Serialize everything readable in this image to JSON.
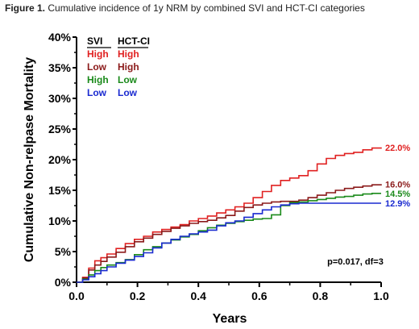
{
  "caption": {
    "label": "Figure 1.",
    "text": " Cumulative incidence of 1y NRM by combined SVI and HCT-CI categories"
  },
  "chart_data": {
    "type": "line",
    "step": true,
    "xlabel": "Years",
    "ylabel": "Cumulative Non-relpase Mortality",
    "xlim": [
      0,
      1.0
    ],
    "ylim": [
      0,
      40
    ],
    "xticks": [
      "0.0",
      "0.2",
      "0.4",
      "0.6",
      "0.8",
      "1.0"
    ],
    "yticks": [
      "0%",
      "5%",
      "10%",
      "15%",
      "20%",
      "25%",
      "30%",
      "35%",
      "40%"
    ],
    "grid": false,
    "legend": {
      "position": "top-left",
      "headers": [
        "SVI",
        "HCT-CI"
      ],
      "rows": [
        {
          "svi": "High",
          "hctci": "High"
        },
        {
          "svi": "Low",
          "hctci": "High"
        },
        {
          "svi": "High",
          "hctci": "Low"
        },
        {
          "svi": "Low",
          "hctci": "Low"
        }
      ]
    },
    "annotation": "p=0.017, df=3",
    "series": [
      {
        "color": "#e02020",
        "end_label": "22.0%",
        "points": [
          [
            0,
            0
          ],
          [
            0.02,
            0.8
          ],
          [
            0.04,
            2.3
          ],
          [
            0.06,
            3.5
          ],
          [
            0.08,
            4.0
          ],
          [
            0.1,
            4.6
          ],
          [
            0.13,
            5.5
          ],
          [
            0.16,
            6.3
          ],
          [
            0.19,
            7.0
          ],
          [
            0.22,
            7.5
          ],
          [
            0.25,
            8.2
          ],
          [
            0.28,
            8.6
          ],
          [
            0.31,
            9.0
          ],
          [
            0.34,
            9.4
          ],
          [
            0.37,
            10.0
          ],
          [
            0.4,
            10.4
          ],
          [
            0.43,
            10.8
          ],
          [
            0.46,
            11.3
          ],
          [
            0.49,
            11.8
          ],
          [
            0.52,
            12.3
          ],
          [
            0.55,
            12.9
          ],
          [
            0.58,
            13.8
          ],
          [
            0.61,
            14.8
          ],
          [
            0.64,
            15.8
          ],
          [
            0.67,
            16.6
          ],
          [
            0.7,
            17.0
          ],
          [
            0.73,
            17.4
          ],
          [
            0.76,
            18.2
          ],
          [
            0.79,
            19.3
          ],
          [
            0.82,
            20.2
          ],
          [
            0.85,
            20.7
          ],
          [
            0.88,
            21.0
          ],
          [
            0.91,
            21.2
          ],
          [
            0.94,
            21.6
          ],
          [
            0.97,
            21.9
          ],
          [
            1.0,
            22.0
          ]
        ]
      },
      {
        "color": "#8b1a1a",
        "end_label": "16.0%",
        "points": [
          [
            0,
            0
          ],
          [
            0.02,
            0.7
          ],
          [
            0.04,
            2.0
          ],
          [
            0.06,
            2.8
          ],
          [
            0.08,
            3.4
          ],
          [
            0.1,
            4.1
          ],
          [
            0.13,
            4.9
          ],
          [
            0.16,
            5.8
          ],
          [
            0.19,
            6.6
          ],
          [
            0.22,
            7.2
          ],
          [
            0.25,
            7.8
          ],
          [
            0.28,
            8.3
          ],
          [
            0.31,
            8.8
          ],
          [
            0.34,
            9.2
          ],
          [
            0.37,
            9.6
          ],
          [
            0.4,
            9.9
          ],
          [
            0.43,
            10.1
          ],
          [
            0.46,
            10.5
          ],
          [
            0.49,
            10.9
          ],
          [
            0.52,
            11.6
          ],
          [
            0.55,
            12.2
          ],
          [
            0.58,
            12.6
          ],
          [
            0.61,
            12.9
          ],
          [
            0.64,
            13.1
          ],
          [
            0.67,
            13.2
          ],
          [
            0.7,
            13.2
          ],
          [
            0.73,
            13.4
          ],
          [
            0.76,
            13.8
          ],
          [
            0.79,
            14.2
          ],
          [
            0.82,
            14.6
          ],
          [
            0.85,
            15.0
          ],
          [
            0.88,
            15.3
          ],
          [
            0.91,
            15.5
          ],
          [
            0.94,
            15.7
          ],
          [
            0.97,
            15.9
          ],
          [
            1.0,
            16.0
          ]
        ]
      },
      {
        "color": "#1a8a1a",
        "end_label": "14.5%",
        "points": [
          [
            0,
            0
          ],
          [
            0.02,
            0.5
          ],
          [
            0.04,
            1.2
          ],
          [
            0.06,
            1.9
          ],
          [
            0.08,
            2.4
          ],
          [
            0.1,
            2.8
          ],
          [
            0.13,
            3.2
          ],
          [
            0.16,
            3.7
          ],
          [
            0.19,
            4.5
          ],
          [
            0.22,
            5.3
          ],
          [
            0.25,
            5.8
          ],
          [
            0.28,
            6.4
          ],
          [
            0.31,
            6.9
          ],
          [
            0.34,
            7.4
          ],
          [
            0.37,
            7.8
          ],
          [
            0.4,
            8.4
          ],
          [
            0.43,
            8.9
          ],
          [
            0.46,
            9.3
          ],
          [
            0.49,
            9.6
          ],
          [
            0.52,
            9.9
          ],
          [
            0.55,
            10.1
          ],
          [
            0.58,
            10.3
          ],
          [
            0.61,
            10.4
          ],
          [
            0.64,
            11.0
          ],
          [
            0.67,
            12.5
          ],
          [
            0.7,
            13.0
          ],
          [
            0.73,
            13.1
          ],
          [
            0.76,
            13.3
          ],
          [
            0.79,
            13.5
          ],
          [
            0.82,
            13.7
          ],
          [
            0.85,
            13.9
          ],
          [
            0.88,
            14.0
          ],
          [
            0.91,
            14.2
          ],
          [
            0.94,
            14.4
          ],
          [
            0.97,
            14.5
          ],
          [
            1.0,
            14.5
          ]
        ]
      },
      {
        "color": "#1a2ad0",
        "end_label": "12.9%",
        "points": [
          [
            0,
            0
          ],
          [
            0.02,
            0.4
          ],
          [
            0.04,
            0.9
          ],
          [
            0.06,
            1.4
          ],
          [
            0.08,
            1.9
          ],
          [
            0.1,
            2.5
          ],
          [
            0.13,
            3.1
          ],
          [
            0.16,
            3.6
          ],
          [
            0.19,
            4.2
          ],
          [
            0.22,
            4.8
          ],
          [
            0.25,
            5.6
          ],
          [
            0.28,
            6.4
          ],
          [
            0.31,
            7.0
          ],
          [
            0.34,
            7.5
          ],
          [
            0.37,
            7.9
          ],
          [
            0.4,
            8.2
          ],
          [
            0.43,
            8.5
          ],
          [
            0.46,
            9.2
          ],
          [
            0.49,
            9.7
          ],
          [
            0.52,
            10.0
          ],
          [
            0.55,
            10.6
          ],
          [
            0.58,
            11.2
          ],
          [
            0.61,
            11.8
          ],
          [
            0.64,
            12.3
          ],
          [
            0.67,
            12.6
          ],
          [
            0.7,
            12.8
          ],
          [
            0.73,
            12.9
          ],
          [
            0.76,
            12.9
          ],
          [
            0.79,
            12.9
          ],
          [
            0.82,
            12.9
          ],
          [
            0.85,
            12.9
          ],
          [
            0.88,
            12.9
          ],
          [
            0.91,
            12.9
          ],
          [
            0.94,
            12.9
          ],
          [
            0.97,
            12.9
          ],
          [
            1.0,
            12.9
          ]
        ]
      }
    ]
  }
}
